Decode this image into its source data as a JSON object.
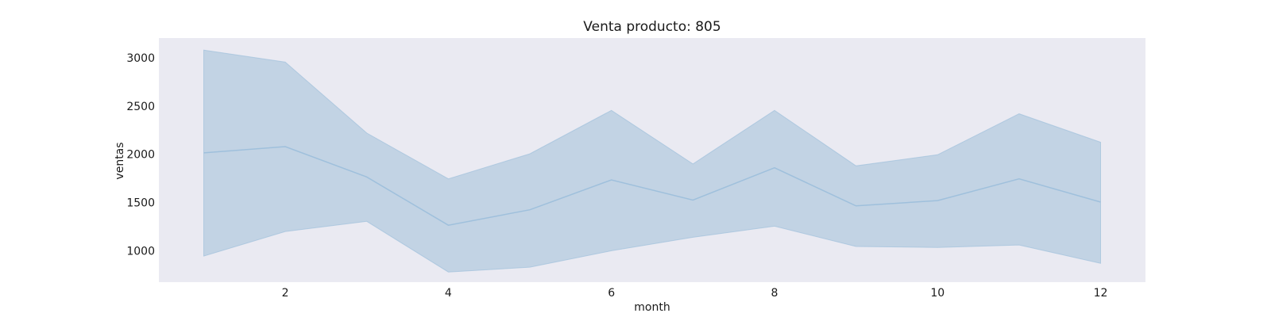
{
  "chart_data": {
    "type": "area",
    "title": "Venta producto: 805",
    "xlabel": "month",
    "ylabel": "ventas",
    "x": [
      1,
      2,
      3,
      4,
      5,
      6,
      7,
      8,
      9,
      10,
      11,
      12
    ],
    "series": [
      {
        "mean": [
          2015,
          2080,
          1765,
          1265,
          1425,
          1735,
          1525,
          1860,
          1465,
          1520,
          1745,
          1505
        ],
        "lower": [
          945,
          1200,
          1305,
          780,
          830,
          1000,
          1140,
          1255,
          1045,
          1035,
          1060,
          870
        ],
        "upper": [
          3080,
          2955,
          2220,
          1745,
          2005,
          2455,
          1900,
          2455,
          1880,
          1995,
          2420,
          2125
        ]
      }
    ],
    "xticks": [
      2,
      4,
      6,
      8,
      10,
      12
    ],
    "yticks": [
      1000,
      1500,
      2000,
      2500,
      3000
    ],
    "xlim": [
      0.45,
      12.55
    ],
    "ylim": [
      675,
      3205
    ],
    "grid": false,
    "colors": {
      "background": "#eaeaf2",
      "band": "#c2d3e4",
      "line": "#9fc0dc"
    }
  }
}
